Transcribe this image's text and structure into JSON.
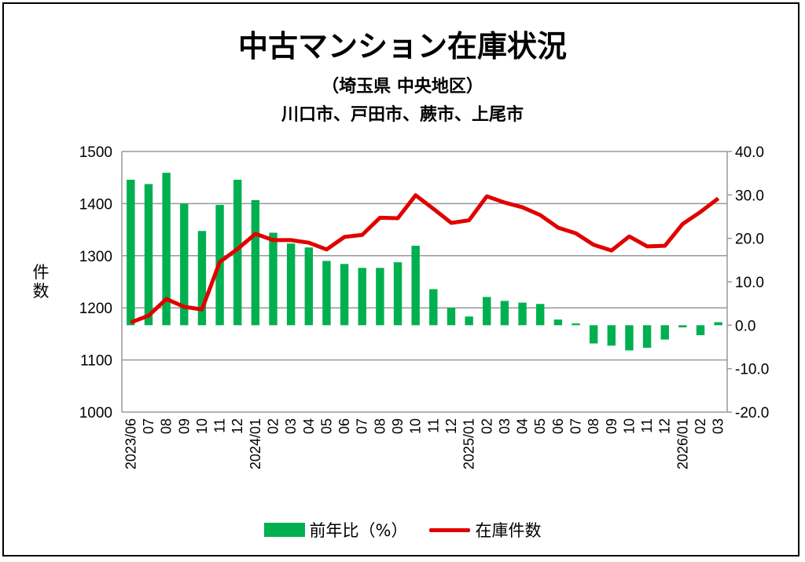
{
  "chart_data": {
    "type": "bar+line",
    "title": "中古マンション在庫状況",
    "subtitle": "（埼玉県 中央地区）",
    "subtitle2": "川口市、戸田市、蕨市、上尾市",
    "ylabel": "件数",
    "ylim_left": [
      1000,
      1500
    ],
    "yticks_left": [
      "1000",
      "1100",
      "1200",
      "1300",
      "1400",
      "1500"
    ],
    "ylim_right": [
      -20,
      40
    ],
    "yticks_right": [
      "-20.0",
      "-10.0",
      "0.0",
      "10.0",
      "20.0",
      "30.0",
      "40.0"
    ],
    "grid": true,
    "legend_position": "bottom",
    "categories": [
      "2023/06",
      "07",
      "08",
      "09",
      "10",
      "11",
      "12",
      "2024/01",
      "02",
      "03",
      "04",
      "05",
      "06",
      "07",
      "08",
      "09",
      "10",
      "11",
      "12",
      "2025/01",
      "02",
      "03",
      "04",
      "05",
      "06",
      "07",
      "08",
      "09",
      "10",
      "11",
      "12",
      "2026/01",
      "02",
      "03"
    ],
    "series": [
      {
        "name": "前年比（%）",
        "type": "bar",
        "axis": "right",
        "color": "#00b050",
        "values": [
          33.5,
          32.5,
          35.1,
          28.0,
          21.7,
          27.7,
          33.5,
          28.8,
          21.3,
          18.8,
          17.9,
          14.8,
          14.1,
          13.2,
          13.2,
          14.5,
          18.3,
          8.3,
          4.0,
          2.0,
          6.5,
          5.6,
          5.2,
          4.9,
          1.3,
          0.4,
          -4.2,
          -4.7,
          -5.8,
          -5.2,
          -3.3,
          -0.5,
          -2.3,
          0.7
        ]
      },
      {
        "name": "在庫件数",
        "type": "line",
        "axis": "left",
        "color": "#e00000",
        "values": [
          1172,
          1185,
          1217,
          1202,
          1197,
          1288,
          1313,
          1342,
          1330,
          1330,
          1325,
          1312,
          1336,
          1340,
          1373,
          1372,
          1416,
          1390,
          1363,
          1368,
          1414,
          1402,
          1393,
          1378,
          1354,
          1343,
          1321,
          1310,
          1337,
          1318,
          1319,
          1361,
          1384,
          1410
        ]
      }
    ]
  }
}
